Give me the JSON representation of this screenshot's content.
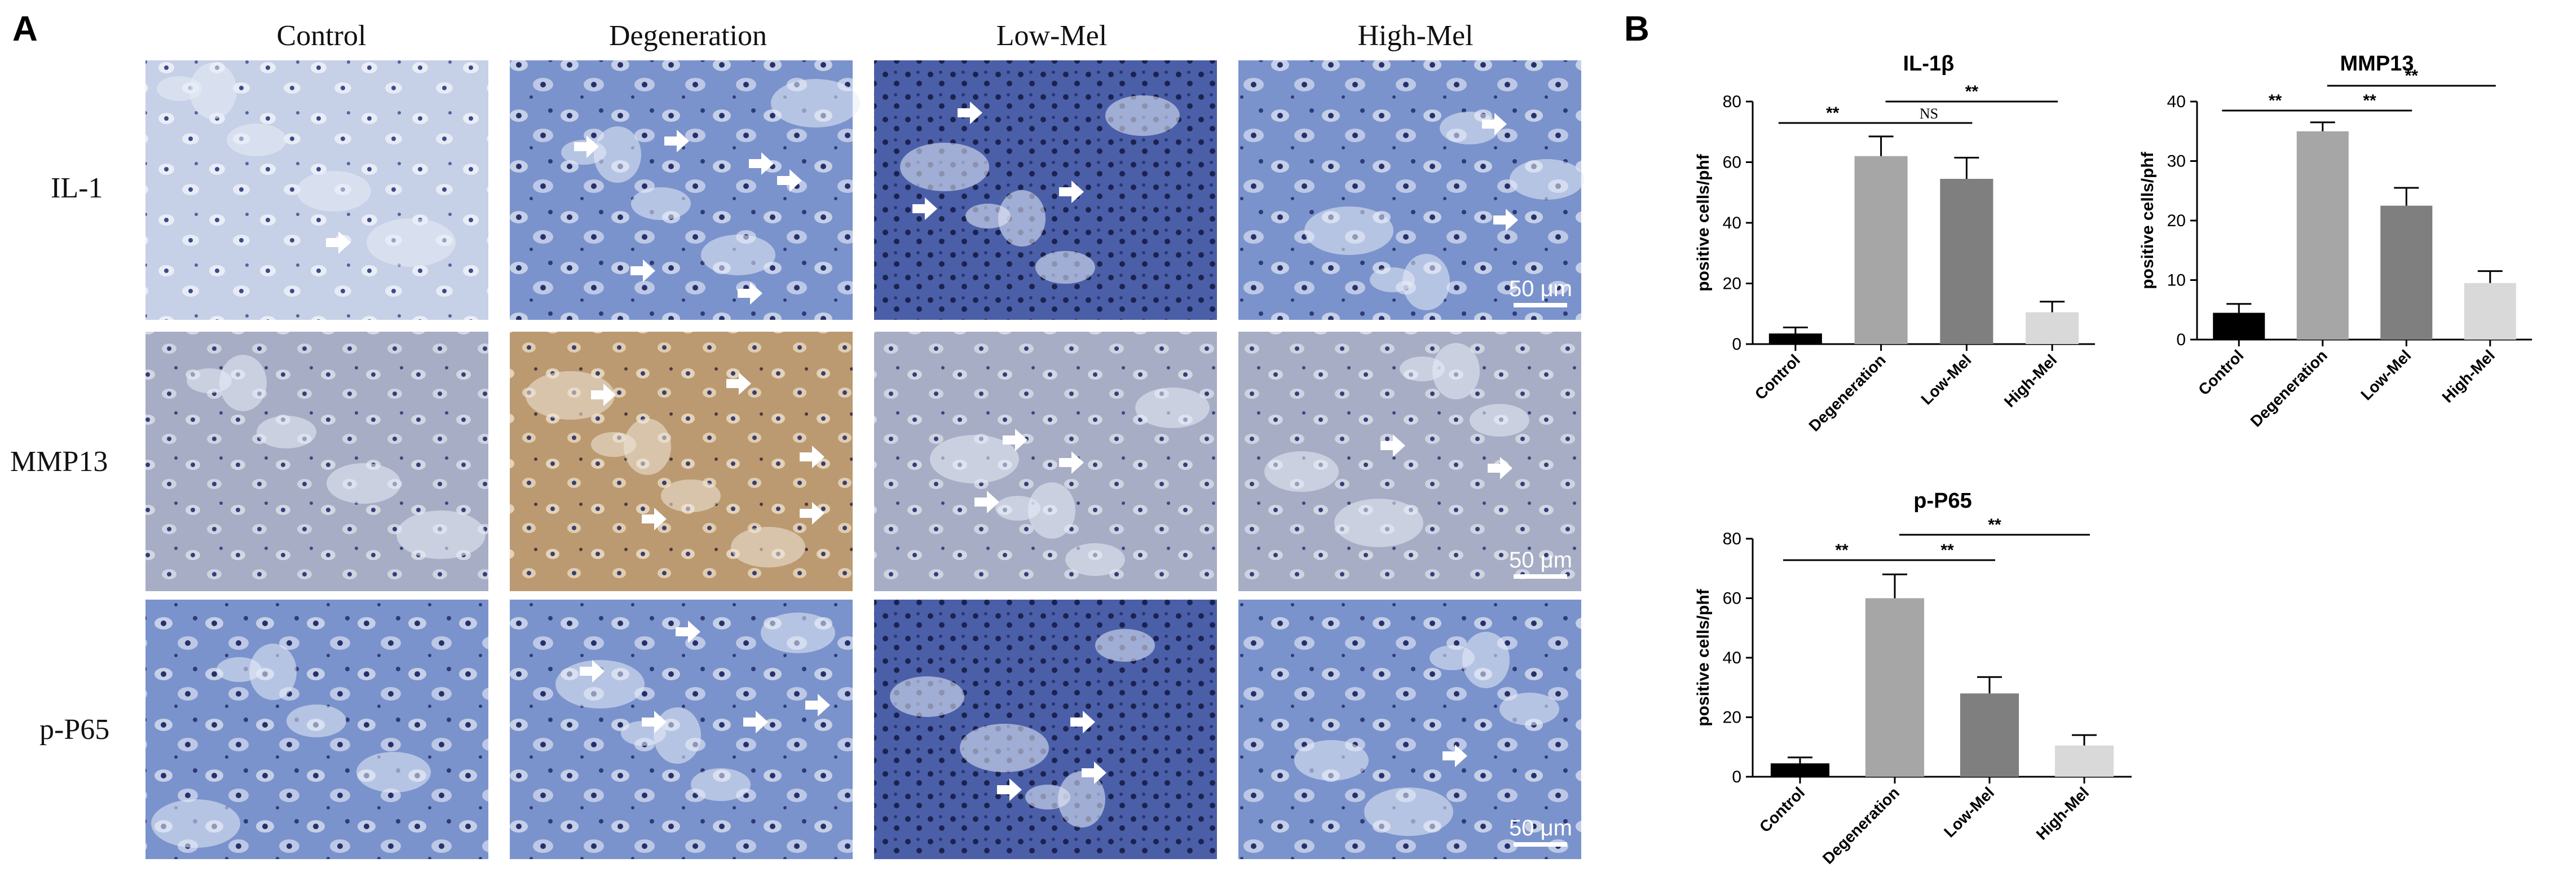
{
  "panels": {
    "a": "A",
    "b": "B"
  },
  "columns": [
    "Control",
    "Degeneration",
    "Low-Mel",
    "High-Mel"
  ],
  "rows": [
    "IL-1",
    "MMP13",
    "p-P65"
  ],
  "scale_bar": "50 μm",
  "colors": {
    "ihc_blue": "#5f7fc4",
    "ihc_pale": "#c7d1e6",
    "ihc_brown": "#b9956a",
    "ihc_grey": "#a9afc4",
    "arrow": "#ffffff",
    "bars": [
      "#000000",
      "#a6a6a6",
      "#7f7f7f",
      "#d9d9d9"
    ]
  },
  "chart_data": [
    {
      "type": "bar",
      "title": "IL-1β",
      "ylabel": "positive cells/phf",
      "categories": [
        "Control",
        "Degeneration",
        "Low-Mel",
        "High-Mel"
      ],
      "values": [
        3.5,
        62,
        54.5,
        10.5
      ],
      "errors": [
        2,
        6.5,
        7,
        3.5
      ],
      "ylim": [
        0,
        80
      ],
      "yticks": [
        0,
        20,
        40,
        60,
        80
      ],
      "significance": [
        {
          "from": 0,
          "to": 1,
          "label": "**"
        },
        {
          "from": 1,
          "to": 2,
          "label": "NS"
        },
        {
          "from": 1,
          "to": 3,
          "label": "**"
        }
      ]
    },
    {
      "type": "bar",
      "title": "MMP13",
      "ylabel": "positive cells/phf",
      "categories": [
        "Control",
        "Degeneration",
        "Low-Mel",
        "High-Mel"
      ],
      "values": [
        4.5,
        35,
        22.5,
        9.5
      ],
      "errors": [
        1.5,
        1.5,
        3,
        2
      ],
      "ylim": [
        0,
        40
      ],
      "yticks": [
        0,
        10,
        20,
        30,
        40
      ],
      "significance": [
        {
          "from": 0,
          "to": 1,
          "label": "**"
        },
        {
          "from": 1,
          "to": 2,
          "label": "**"
        },
        {
          "from": 1,
          "to": 3,
          "label": "**"
        }
      ]
    },
    {
      "type": "bar",
      "title": "p-P65",
      "ylabel": "positive cells/phf",
      "categories": [
        "Control",
        "Degeneration",
        "Low-Mel",
        "High-Mel"
      ],
      "values": [
        4.5,
        60,
        28,
        10.5
      ],
      "errors": [
        2,
        8,
        5.5,
        3.5
      ],
      "ylim": [
        0,
        80
      ],
      "yticks": [
        0,
        20,
        40,
        60,
        80
      ],
      "significance": [
        {
          "from": 0,
          "to": 1,
          "label": "**"
        },
        {
          "from": 1,
          "to": 2,
          "label": "**"
        },
        {
          "from": 1,
          "to": 3,
          "label": "**"
        }
      ]
    }
  ]
}
